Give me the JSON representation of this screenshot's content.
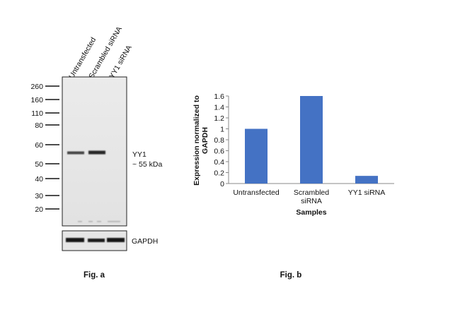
{
  "blot": {
    "lanes": [
      "Untransfected",
      "Scrambled siRNA",
      "YY1 siRNA"
    ],
    "markers": [
      "260",
      "160",
      "110",
      "80",
      "60",
      "50",
      "40",
      "30",
      "20"
    ],
    "band_label_line1": "YY1",
    "band_label_line2": "~ 55 kDa",
    "control_label": "GAPDH",
    "caption": "Fig. a"
  },
  "chart_data": {
    "type": "bar",
    "categories": [
      "Untransfected",
      "Scrambled\nsiRNA",
      "YY1 siRNA"
    ],
    "values": [
      1.0,
      1.6,
      0.14
    ],
    "title": "",
    "xlabel": "Samples",
    "ylabel": "Expression normalized to GAPDH",
    "ylabel_line1": "Expression  normalized to",
    "ylabel_line2": "GAPDH",
    "ylim": [
      0,
      1.6
    ],
    "yticks": [
      "0",
      "0.2",
      "0.4",
      "0.6",
      "0.8",
      "1",
      "1.2",
      "1.4",
      "1.6"
    ],
    "bar_color": "#4472C4",
    "grid": false,
    "caption": "Fig. b"
  }
}
